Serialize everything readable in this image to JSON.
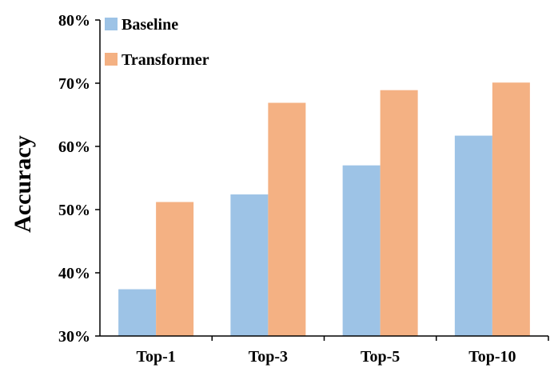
{
  "chart_data": {
    "type": "bar",
    "title": "",
    "xlabel": "",
    "ylabel": "Accuracy",
    "categories": [
      "Top-1",
      "Top-3",
      "Top-5",
      "Top-10"
    ],
    "series": [
      {
        "name": "Baseline",
        "values": [
          37.4,
          52.4,
          57.0,
          61.7
        ],
        "color": "#9dc3e6"
      },
      {
        "name": "Transformer",
        "values": [
          51.2,
          66.9,
          68.9,
          70.1
        ],
        "color": "#f4b183"
      }
    ],
    "ylim": [
      30,
      80
    ],
    "yticks": [
      30,
      40,
      50,
      60,
      70,
      80
    ],
    "ytick_labels": [
      "30%",
      "40%",
      "50%",
      "60%",
      "70%",
      "80%"
    ],
    "grid": false,
    "legend_position": "top-left"
  }
}
